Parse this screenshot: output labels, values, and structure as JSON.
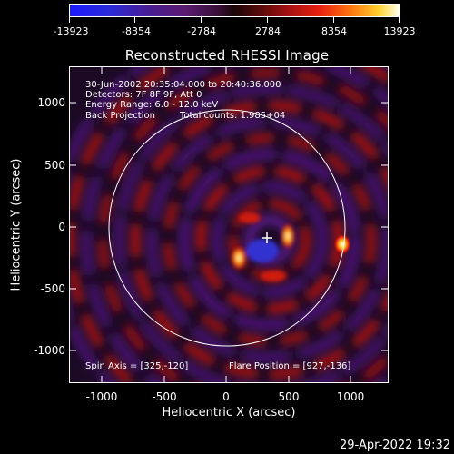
{
  "colorbar": {
    "labels": [
      "-13923",
      "-8354",
      "-2784",
      "2784",
      "8354",
      "13923"
    ]
  },
  "title": "Reconstructed RHESSI Image",
  "info": {
    "line1": "30-Jun-2002 20:35:04.000 to 20:40:36.000",
    "line2": "Detectors: 7F 8F 9F, Att 0",
    "line3": "Energy Range: 6.0 - 12.0 keV",
    "line4_left": "Back Projection",
    "line4_right": "Total counts: 1.985+04",
    "spin_axis": "Spin Axis = [325,-120]",
    "flare_position": "Flare Position = [927,-136]"
  },
  "axes": {
    "xlabel": "Heliocentric X (arcsec)",
    "ylabel": "Heliocentric Y (arcsec)",
    "xticks": [
      "-1000",
      "-500",
      "0",
      "500",
      "1000"
    ],
    "yticks": [
      "1000",
      "500",
      "0",
      "-500",
      "-1000"
    ]
  },
  "timestamp": "29-Apr-2022 19:32",
  "colors": {
    "background": "#000000",
    "foreground": "#ffffff"
  }
}
